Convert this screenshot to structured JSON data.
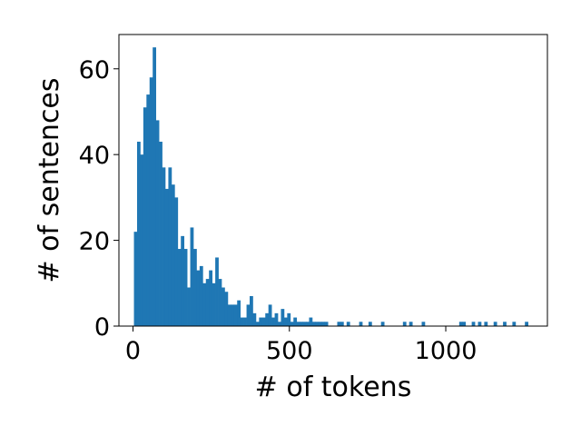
{
  "chart_data": {
    "type": "bar",
    "xlabel": "# of tokens",
    "ylabel": "# of sentences",
    "xlim": [
      -45,
      1325
    ],
    "ylim": [
      0,
      68
    ],
    "xticks": [
      0,
      500,
      1000
    ],
    "yticks": [
      0,
      20,
      40,
      60
    ],
    "grid": false,
    "color": "#1f77b4",
    "bin_width": 10,
    "bin_starts": [
      3,
      13,
      23,
      33,
      43,
      53,
      63,
      73,
      83,
      93,
      103,
      113,
      123,
      133,
      143,
      153,
      163,
      173,
      183,
      193,
      203,
      213,
      223,
      233,
      243,
      253,
      263,
      273,
      283,
      293,
      303,
      313,
      323,
      333,
      343,
      353,
      363,
      373,
      383,
      393,
      403,
      413,
      423,
      433,
      443,
      453,
      463,
      473,
      483,
      493,
      503,
      513,
      523,
      533,
      543,
      553,
      563,
      573,
      583,
      593,
      603,
      613,
      653,
      663,
      683,
      723,
      753,
      793,
      863,
      883,
      923,
      1043,
      1053,
      1083,
      1103,
      1123,
      1153,
      1183,
      1213,
      1253
    ],
    "counts": [
      22,
      43,
      40,
      51,
      54,
      58,
      65,
      48,
      43,
      37,
      32,
      37,
      33,
      30,
      18,
      21,
      18,
      9,
      23,
      18,
      13,
      14,
      10,
      11,
      13,
      10,
      16,
      11,
      9,
      8,
      5,
      5,
      5,
      6,
      2,
      2,
      5,
      7,
      3,
      1,
      2,
      2,
      3,
      5,
      2,
      3,
      1,
      4,
      2,
      3,
      1,
      2,
      1,
      1,
      1,
      1,
      2,
      1,
      1,
      1,
      1,
      1,
      1,
      1,
      1,
      1,
      1,
      1,
      1,
      1,
      1,
      1,
      1,
      1,
      1,
      1,
      1,
      1,
      1,
      1
    ]
  }
}
